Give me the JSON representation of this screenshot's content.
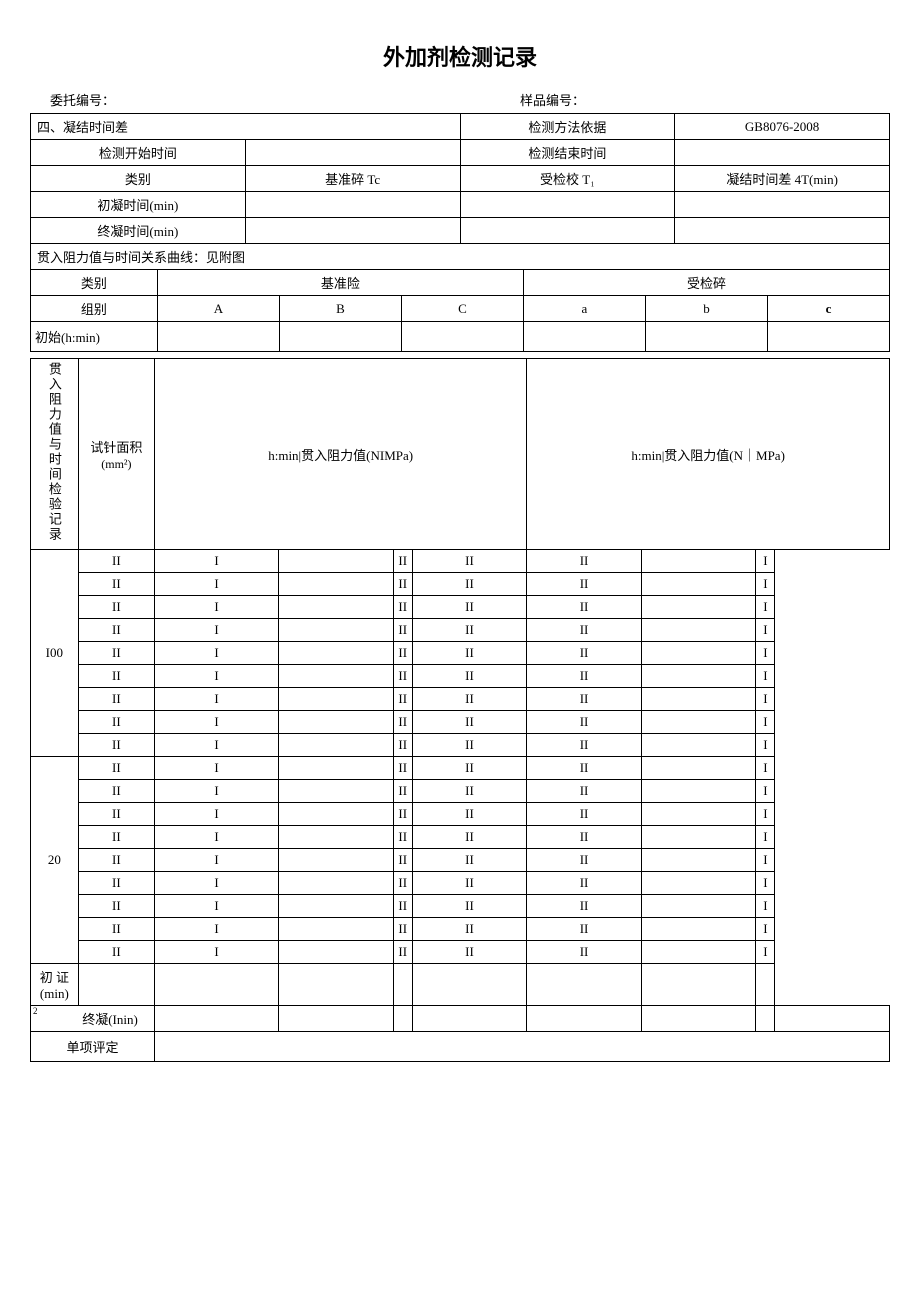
{
  "title": "外加剂检测记录",
  "meta": {
    "entrust_label": "委托编号：",
    "sample_label": "样品编号："
  },
  "section4": {
    "heading": "四、凝结时间差",
    "method_label": "检测方法依据",
    "method_value": "GB8076-2008",
    "start_label": "检测开始时间",
    "end_label": "检测结束时间",
    "category_label": "类别",
    "ref_crush_label": "基准碎 Tc",
    "test_crush_label": "受检校 T₁",
    "diff_label": "凝结时间差 4T(min)",
    "initial_set_label": "初凝时间(min)",
    "final_set_label": "终凝时间(min)"
  },
  "curve_note": "贯入阻力值与时间关系曲线：见附图",
  "group_table": {
    "category_label": "类别",
    "ref_label": "基准险",
    "test_label": "受检碎",
    "group_label": "组别",
    "cols_ref": [
      "A",
      "B",
      "C"
    ],
    "cols_test": [
      "a",
      "b",
      "c"
    ],
    "initial_label": "初始(h:min)"
  },
  "big_table": {
    "side_label": "贯入阻力值与时间检验记录",
    "needle_area_label": "试针面积",
    "needle_area_unit": "(mm²)",
    "header_ref": "h:min|贯入阻力值(NIMPa)",
    "header_test": "h:min|贯入阻力值(N｜MPa)",
    "area1": "I00",
    "area2": "20",
    "row_pattern_ref": [
      "II",
      "I",
      "II"
    ],
    "row_pattern_test": [
      "II",
      "II",
      "I"
    ],
    "rows_per_area": 9,
    "initial_cert_label": "初 证(min)",
    "final_set2_label": "终凝(Inin)",
    "single_eval_label": "单项评定",
    "small2": "2"
  },
  "style": {
    "bg": "#ffffff",
    "border": "#000000",
    "text": "#000000",
    "title_fontsize": 22,
    "body_fontsize": 13
  }
}
